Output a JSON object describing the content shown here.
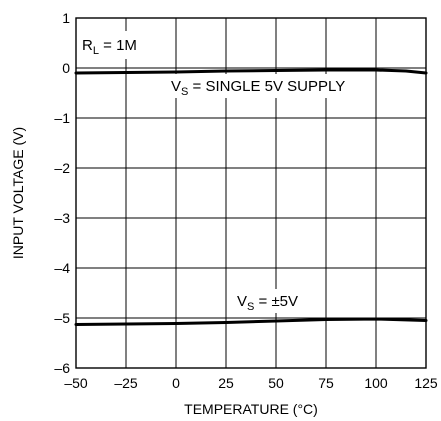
{
  "chart_data": {
    "type": "line",
    "xlabel": "TEMPERATURE (°C)",
    "ylabel": "INPUT VOLTAGE (V)",
    "xlim": [
      -50,
      125
    ],
    "ylim": [
      -6,
      1
    ],
    "x_ticks": [
      -50,
      -25,
      0,
      25,
      50,
      75,
      100,
      125
    ],
    "y_ticks": [
      1,
      0,
      -1,
      -2,
      -3,
      -4,
      -5,
      -6
    ],
    "x_tick_labels": [
      "–50",
      "–25",
      "0",
      "25",
      "50",
      "75",
      "100",
      "125"
    ],
    "y_tick_labels": [
      "1",
      "0",
      "–1",
      "–2",
      "–3",
      "–4",
      "–5",
      "–6"
    ],
    "grid": true,
    "series": [
      {
        "name": "VS = SINGLE 5V SUPPLY",
        "x": [
          -50,
          -25,
          0,
          25,
          50,
          75,
          100,
          115,
          125
        ],
        "y": [
          -0.1,
          -0.09,
          -0.08,
          -0.06,
          -0.05,
          -0.04,
          -0.04,
          -0.06,
          -0.1
        ]
      },
      {
        "name": "VS = ±5V",
        "x": [
          -50,
          -25,
          0,
          25,
          50,
          75,
          100,
          125
        ],
        "y": [
          -5.13,
          -5.12,
          -5.11,
          -5.09,
          -5.06,
          -5.03,
          -5.02,
          -5.05
        ]
      }
    ],
    "annotations": {
      "rl": {
        "main": "R",
        "sub": "L",
        "rest": " = 1M"
      },
      "vs_single": {
        "main": "V",
        "sub": "S",
        "rest": " = SINGLE 5V SUPPLY"
      },
      "vs_dual": {
        "main": "V",
        "sub": "S",
        "rest": " = ±5V"
      }
    }
  }
}
